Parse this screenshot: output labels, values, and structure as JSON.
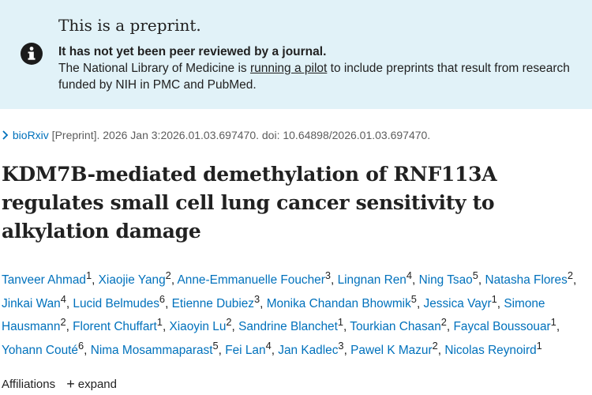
{
  "banner": {
    "title": "This is a preprint.",
    "subtitle": "It has not yet been peer reviewed by a journal.",
    "text_before": "The National Library of Medicine is ",
    "link": "running a pilot",
    "text_after": " to include preprints that result from research funded by NIH in PMC and PubMed.",
    "icon": "info-icon",
    "background_color": "#e1f2f8"
  },
  "citation": {
    "journal": "bioRxiv",
    "details": " [Preprint]. 2026 Jan 3:2026.01.03.697470. doi: 10.64898/2026.01.03.697470."
  },
  "article": {
    "title": "KDM7B-mediated demethylation of RNF113A regulates small cell lung cancer sensitivity to alkylation damage"
  },
  "authors": [
    {
      "name": "Tanveer Ahmad",
      "sup": "1"
    },
    {
      "name": "Xiaojie Yang",
      "sup": "2"
    },
    {
      "name": "Anne-Emmanuelle Foucher",
      "sup": "3"
    },
    {
      "name": "Lingnan Ren",
      "sup": "4"
    },
    {
      "name": "Ning Tsao",
      "sup": "5"
    },
    {
      "name": "Natasha Flores",
      "sup": "2"
    },
    {
      "name": "Jinkai Wan",
      "sup": "4"
    },
    {
      "name": "Lucid Belmudes",
      "sup": "6"
    },
    {
      "name": "Etienne Dubiez",
      "sup": "3"
    },
    {
      "name": "Monika Chandan Bhowmik",
      "sup": "5"
    },
    {
      "name": "Jessica Vayr",
      "sup": "1"
    },
    {
      "name": "Simone Hausmann",
      "sup": "2"
    },
    {
      "name": "Florent Chuffart",
      "sup": "1"
    },
    {
      "name": "Xiaoyin Lu",
      "sup": "2"
    },
    {
      "name": "Sandrine Blanchet",
      "sup": "1"
    },
    {
      "name": "Tourkian Chasan",
      "sup": "2"
    },
    {
      "name": "Faycal Boussouar",
      "sup": "1"
    },
    {
      "name": "Yohann Couté",
      "sup": "6"
    },
    {
      "name": "Nima Mosammaparast",
      "sup": "5"
    },
    {
      "name": "Fei Lan",
      "sup": "4"
    },
    {
      "name": "Jan Kadlec",
      "sup": "3"
    },
    {
      "name": "Pawel K Mazur",
      "sup": "2"
    },
    {
      "name": "Nicolas Reynoird",
      "sup": "1"
    }
  ],
  "affiliations": {
    "label": "Affiliations",
    "expand_label": "expand",
    "expand_icon": "plus-icon"
  },
  "colors": {
    "link": "#0071bc",
    "text": "#212121"
  }
}
